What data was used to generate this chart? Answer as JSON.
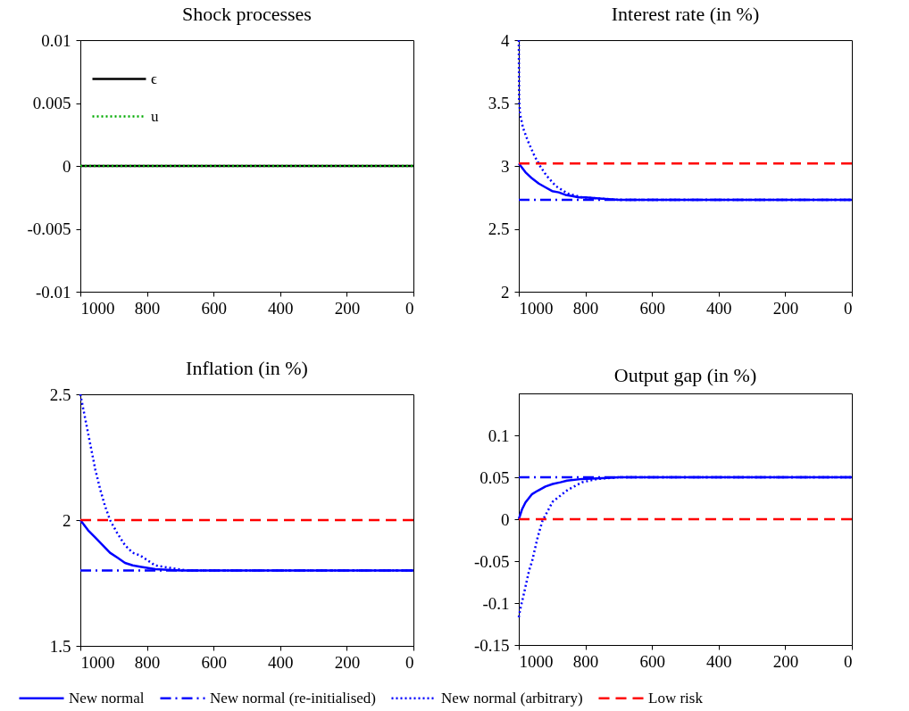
{
  "chart_data": [
    {
      "type": "line",
      "title": "Shock processes",
      "xlim": [
        1000,
        0
      ],
      "xticks": [
        1000,
        800,
        600,
        400,
        200,
        0
      ],
      "ylim": [
        -0.01,
        0.01
      ],
      "yticks": [
        -0.01,
        -0.005,
        0,
        0.005,
        0.01
      ],
      "grid": false,
      "legend": "top left",
      "series": [
        {
          "name": "ϵ",
          "color": "#000000",
          "line_style": "solid",
          "x": [
            1000,
            0
          ],
          "values": [
            0,
            0
          ]
        },
        {
          "name": "u",
          "color": "#00aa00",
          "line_style": "dotted",
          "x": [
            1000,
            0
          ],
          "values": [
            0,
            0
          ]
        }
      ]
    },
    {
      "type": "line",
      "title": "Interest rate (in %)",
      "xlim": [
        1000,
        0
      ],
      "xticks": [
        1000,
        800,
        600,
        400,
        200,
        0
      ],
      "ylim": [
        2,
        4
      ],
      "yticks": [
        2,
        2.5,
        3,
        3.5,
        4
      ],
      "grid": false,
      "legend": false,
      "series": [
        {
          "color": "#0000ff",
          "line_style": "solid",
          "x": [
            1000,
            980,
            960,
            940,
            920,
            900,
            880,
            860,
            840,
            820,
            800,
            750,
            700,
            0
          ],
          "values": [
            3.02,
            2.95,
            2.9,
            2.86,
            2.83,
            2.8,
            2.79,
            2.77,
            2.76,
            2.75,
            2.75,
            2.74,
            2.73,
            2.73
          ]
        },
        {
          "color": "#0000ff",
          "line_style": "dashdot",
          "x": [
            1000,
            0
          ],
          "values": [
            2.73,
            2.73
          ]
        },
        {
          "color": "#0000ff",
          "line_style": "dotted",
          "x": [
            1000,
            999,
            996,
            987,
            973,
            953,
            934,
            916,
            889,
            853,
            810,
            750,
            700,
            0
          ],
          "values": [
            4.0,
            3.52,
            3.41,
            3.3,
            3.2,
            3.08,
            2.99,
            2.92,
            2.84,
            2.78,
            2.75,
            2.74,
            2.73,
            2.73
          ]
        },
        {
          "color": "#ff0000",
          "line_style": "dashed",
          "x": [
            1000,
            0
          ],
          "values": [
            3.02,
            3.02
          ]
        }
      ]
    },
    {
      "type": "line",
      "title": "Inflation (in %)",
      "xlim": [
        1000,
        0
      ],
      "xticks": [
        1000,
        800,
        600,
        400,
        200,
        0
      ],
      "ylim": [
        1.5,
        2.5
      ],
      "yticks": [
        1.5,
        2,
        2.5
      ],
      "grid": false,
      "legend": "bottom",
      "series": [
        {
          "name": "New normal",
          "color": "#0000ff",
          "line_style": "solid",
          "x": [
            1000,
            977,
            955,
            933,
            911,
            888,
            866,
            843,
            821,
            775,
            700,
            0
          ],
          "values": [
            2.0,
            1.96,
            1.93,
            1.9,
            1.87,
            1.85,
            1.83,
            1.82,
            1.815,
            1.805,
            1.8,
            1.8
          ]
        },
        {
          "name": "New normal (re-initialised)",
          "color": "#0000ff",
          "line_style": "dashdot",
          "x": [
            1000,
            0
          ],
          "values": [
            1.8,
            1.8
          ]
        },
        {
          "name": "New normal (arbitrary)",
          "color": "#0000ff",
          "line_style": "dotted",
          "x": [
            1000,
            985,
            970,
            955,
            940,
            927,
            911,
            890,
            866,
            843,
            821,
            798,
            776,
            731,
            680,
            0
          ],
          "values": [
            2.5,
            2.4,
            2.3,
            2.2,
            2.12,
            2.06,
            2.0,
            1.95,
            1.9,
            1.87,
            1.86,
            1.84,
            1.82,
            1.81,
            1.8,
            1.8
          ]
        },
        {
          "name": "Low risk",
          "color": "#ff0000",
          "line_style": "dashed",
          "x": [
            1000,
            0
          ],
          "values": [
            2.0,
            2.0
          ]
        }
      ]
    },
    {
      "type": "line",
      "title": "Output gap (in %)",
      "xlim": [
        1000,
        0
      ],
      "xticks": [
        1000,
        800,
        600,
        400,
        200,
        0
      ],
      "ylim": [
        -0.15,
        0.15
      ],
      "yticks": [
        -0.15,
        -0.1,
        -0.05,
        0,
        0.05,
        0.1
      ],
      "grid": false,
      "legend": false,
      "series": [
        {
          "color": "#0000ff",
          "line_style": "solid",
          "x": [
            1000,
            990,
            980,
            960,
            943,
            920,
            898,
            875,
            855,
            810,
            750,
            700,
            0
          ],
          "values": [
            0,
            0.012,
            0.02,
            0.03,
            0.034,
            0.039,
            0.042,
            0.044,
            0.046,
            0.048,
            0.049,
            0.05,
            0.05
          ]
        },
        {
          "color": "#0000ff",
          "line_style": "dashdot",
          "x": [
            1000,
            0
          ],
          "values": [
            0.05,
            0.05
          ]
        },
        {
          "color": "#0000ff",
          "line_style": "dotted",
          "x": [
            1000,
            996,
            987,
            978,
            969,
            960,
            943,
            929,
            898,
            853,
            810,
            764,
            700,
            0
          ],
          "values": [
            -0.117,
            -0.108,
            -0.093,
            -0.077,
            -0.061,
            -0.05,
            -0.021,
            -0.002,
            0.021,
            0.035,
            0.044,
            0.048,
            0.05,
            0.05
          ]
        },
        {
          "color": "#ff0000",
          "line_style": "dashed",
          "x": [
            1000,
            0
          ],
          "values": [
            0,
            0
          ]
        }
      ]
    }
  ]
}
